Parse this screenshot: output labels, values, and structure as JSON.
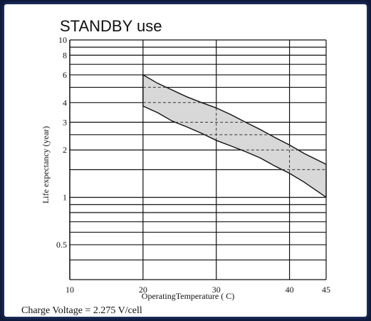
{
  "chart_data": {
    "type": "area",
    "title": "STANDBY use",
    "xlabel": "OperatingTemperature ( C)",
    "ylabel": "Life expectancy (year)",
    "footnote": "Charge Voltage = 2.275 V/cell",
    "x_ticks": [
      10,
      20,
      30,
      40,
      45
    ],
    "y_ticks": [
      0.5,
      1,
      2,
      3,
      4,
      6,
      8,
      10
    ],
    "y_gridlines": [
      0.3,
      0.4,
      0.5,
      0.6,
      0.7,
      0.8,
      0.9,
      1,
      1.5,
      2,
      2.5,
      3,
      4,
      5,
      6,
      7,
      8,
      9,
      10
    ],
    "xlim": [
      10,
      45
    ],
    "ylim": [
      0.3,
      10
    ],
    "yscale": "log",
    "grid": true,
    "series": [
      {
        "x": [
          20,
          22,
          24,
          26,
          28,
          30,
          32,
          34,
          36,
          38,
          40,
          42,
          45
        ],
        "y": [
          6.0,
          5.3,
          4.8,
          4.35,
          4.0,
          3.7,
          3.35,
          3.0,
          2.7,
          2.4,
          2.15,
          1.9,
          1.62
        ]
      },
      {
        "x": [
          20,
          22,
          24,
          26,
          28,
          30,
          32,
          34,
          36,
          38,
          40,
          42,
          45
        ],
        "y": [
          3.8,
          3.45,
          3.05,
          2.8,
          2.55,
          2.3,
          2.12,
          1.95,
          1.78,
          1.58,
          1.42,
          1.25,
          1.0
        ]
      }
    ],
    "band_fill": "#d8d8d8",
    "dashed_reference_y": [
      5,
      4,
      3,
      2.5,
      2,
      1.5
    ],
    "dashed_reference_x": [
      30,
      40
    ]
  }
}
